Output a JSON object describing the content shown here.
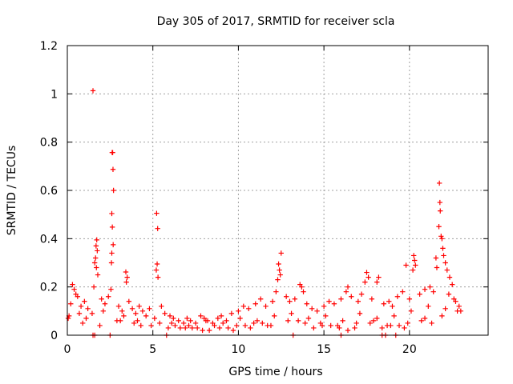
{
  "chart_data": {
    "type": "scatter",
    "title": "Day 305 of 2017, SRMTID for receiver scla",
    "xlabel": "GPS time / hours",
    "ylabel": "SRMTID / TECUs",
    "xlim": [
      0,
      24.6
    ],
    "ylim": [
      0,
      1.2
    ],
    "xticks": [
      0,
      5,
      10,
      15,
      20
    ],
    "yticks": [
      0,
      0.2,
      0.4,
      0.6,
      0.8,
      1,
      1.2
    ],
    "xtick_labels": [
      "0",
      "5",
      "10",
      "15",
      "20"
    ],
    "ytick_labels": [
      "0",
      "0.2",
      "0.4",
      "0.6",
      "0.8",
      "1",
      "1.2"
    ],
    "grid": true,
    "marker": "plus",
    "color": "#ff0000",
    "series": [
      {
        "name": "SRMTID",
        "x": [
          1.5,
          2.62,
          2.65,
          2.67,
          2.7,
          2.6,
          2.63,
          2.68,
          2.6,
          2.58,
          1.72,
          1.68,
          1.75,
          1.65,
          1.6,
          1.7,
          1.78,
          5.22,
          5.28,
          5.25,
          5.2,
          5.3,
          3.42,
          3.5,
          3.45,
          12.5,
          12.35,
          12.4,
          12.45,
          12.3,
          21.75,
          21.78,
          21.8,
          21.72,
          21.85,
          21.9,
          21.95,
          22.0,
          22.1,
          22.2,
          22.35,
          22.5,
          21.55,
          21.6,
          20.25,
          20.3,
          20.35,
          20.2,
          19.8,
          13.6,
          13.7,
          13.8,
          17.5,
          17.6,
          17.4,
          16.3,
          16.4,
          18.1,
          18.2,
          0.3,
          0.4,
          0.5,
          0.6,
          0.2,
          0.8,
          1.0,
          1.2,
          2.0,
          2.2,
          2.4,
          3.0,
          3.2,
          3.6,
          3.8,
          4.0,
          4.2,
          4.4,
          4.6,
          4.8,
          5.5,
          5.7,
          6.0,
          6.2,
          6.5,
          6.8,
          7.0,
          7.2,
          7.5,
          7.8,
          8.0,
          8.2,
          8.5,
          8.8,
          9.0,
          9.3,
          9.6,
          10.0,
          10.3,
          10.6,
          11.0,
          11.3,
          11.6,
          12.0,
          12.2,
          12.8,
          13.0,
          13.3,
          14.0,
          14.3,
          14.6,
          15.0,
          15.3,
          15.6,
          16.0,
          16.6,
          17.0,
          17.2,
          17.8,
          18.5,
          18.8,
          19.0,
          19.3,
          19.6,
          20.0,
          20.6,
          20.9,
          21.2,
          21.4,
          22.3,
          22.6,
          22.7,
          0.1,
          0.7,
          1.1,
          2.1,
          3.3,
          4.1,
          5.1,
          6.1,
          7.1,
          8.1,
          9.1,
          10.1,
          11.1,
          12.1,
          13.1,
          14.1,
          15.1,
          16.1,
          17.1,
          18.1,
          19.1,
          20.1,
          21.1,
          22.1,
          0.9,
          1.9,
          2.9,
          3.9,
          4.9,
          5.9,
          6.9,
          7.9,
          8.9,
          9.9,
          10.9,
          11.9,
          12.9,
          13.9,
          14.9,
          15.9,
          16.9,
          17.9,
          18.9,
          19.9,
          20.9,
          21.9,
          22.8,
          1.55,
          2.55,
          6.3,
          7.3,
          8.3,
          9.4,
          10.4,
          11.4,
          14.4,
          15.4,
          16.4,
          18.4,
          19.4,
          23.0,
          22.9,
          0.05,
          1.45,
          3.1,
          4.3,
          5.4,
          6.6,
          7.6,
          8.6,
          9.7,
          10.7,
          11.7,
          13.5,
          14.8,
          15.8,
          16.8,
          17.7,
          18.7,
          19.7,
          20.7,
          21.3,
          1.5,
          1.6,
          2.5,
          5.8,
          18.4,
          18.6,
          19.2,
          16.0,
          13.2
        ],
        "y": [
          1.013,
          0.757,
          0.757,
          0.687,
          0.6,
          0.504,
          0.448,
          0.375,
          0.34,
          0.3,
          0.395,
          0.37,
          0.35,
          0.32,
          0.3,
          0.28,
          0.25,
          0.505,
          0.442,
          0.295,
          0.27,
          0.24,
          0.262,
          0.24,
          0.22,
          0.34,
          0.295,
          0.27,
          0.25,
          0.23,
          0.63,
          0.55,
          0.515,
          0.45,
          0.41,
          0.4,
          0.36,
          0.33,
          0.3,
          0.27,
          0.24,
          0.21,
          0.32,
          0.28,
          0.33,
          0.31,
          0.29,
          0.27,
          0.29,
          0.21,
          0.2,
          0.18,
          0.26,
          0.24,
          0.22,
          0.18,
          0.2,
          0.22,
          0.24,
          0.21,
          0.19,
          0.17,
          0.16,
          0.13,
          0.12,
          0.14,
          0.11,
          0.15,
          0.13,
          0.16,
          0.12,
          0.1,
          0.14,
          0.11,
          0.09,
          0.12,
          0.1,
          0.08,
          0.11,
          0.12,
          0.09,
          0.08,
          0.07,
          0.06,
          0.05,
          0.07,
          0.06,
          0.05,
          0.08,
          0.07,
          0.06,
          0.05,
          0.07,
          0.08,
          0.06,
          0.09,
          0.1,
          0.12,
          0.11,
          0.13,
          0.15,
          0.12,
          0.14,
          0.18,
          0.16,
          0.14,
          0.15,
          0.13,
          0.11,
          0.1,
          0.12,
          0.14,
          0.13,
          0.15,
          0.16,
          0.14,
          0.17,
          0.15,
          0.13,
          0.14,
          0.12,
          0.16,
          0.18,
          0.15,
          0.17,
          0.19,
          0.2,
          0.18,
          0.17,
          0.15,
          0.14,
          0.08,
          0.09,
          0.07,
          0.1,
          0.08,
          0.06,
          0.07,
          0.05,
          0.04,
          0.06,
          0.05,
          0.07,
          0.06,
          0.08,
          0.09,
          0.07,
          0.08,
          0.06,
          0.09,
          0.07,
          0.08,
          0.1,
          0.12,
          0.11,
          0.05,
          0.04,
          0.06,
          0.05,
          0.04,
          0.03,
          0.03,
          0.02,
          0.03,
          0.04,
          0.05,
          0.04,
          0.06,
          0.05,
          0.04,
          0.03,
          0.05,
          0.06,
          0.04,
          0.05,
          0.07,
          0.08,
          0.1,
          0.2,
          0.19,
          0.04,
          0.03,
          0.02,
          0.03,
          0.04,
          0.05,
          0.03,
          0.04,
          0.02,
          0.03,
          0.04,
          0.1,
          0.12,
          0.07,
          0.09,
          0.06,
          0.04,
          0.05,
          0.03,
          0.03,
          0.04,
          0.02,
          0.03,
          0.04,
          0.06,
          0.05,
          0.04,
          0.03,
          0.05,
          0.04,
          0.03,
          0.06,
          0.05,
          0.0,
          0.0,
          0.0,
          0.0,
          0.0,
          0.0,
          0.0,
          0.0,
          0.0
        ]
      }
    ]
  }
}
